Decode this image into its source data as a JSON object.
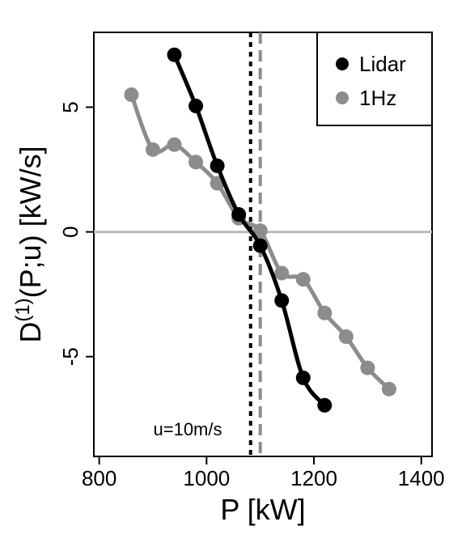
{
  "chart_data": {
    "type": "line",
    "xlabel": "P [kW]",
    "ylabel_parts": {
      "main": "D",
      "superscript": "(1)",
      "rest": "(P;u) [kW/s]"
    },
    "xlim": [
      790,
      1420
    ],
    "ylim": [
      -9,
      8
    ],
    "x_ticks": [
      800,
      1000,
      1200,
      1400
    ],
    "x_tick_labels": [
      "800",
      "1000",
      "1200",
      "1400"
    ],
    "y_ticks": [
      -5,
      0,
      5
    ],
    "y_tick_labels": [
      "-5",
      "0",
      "5"
    ],
    "grid": false,
    "legend_position": "top-right",
    "annotation": "u=10m/s",
    "series": [
      {
        "name": "Lidar",
        "color": "#000000",
        "x": [
          940,
          980,
          1020,
          1060,
          1100,
          1140,
          1180,
          1220
        ],
        "y": [
          7.1,
          5.05,
          2.65,
          0.7,
          -0.55,
          -2.75,
          -5.85,
          -6.95
        ]
      },
      {
        "name": "1Hz",
        "color": "#8c8c8c",
        "x": [
          860,
          900,
          940,
          980,
          1020,
          1060,
          1100,
          1140,
          1180,
          1220,
          1260,
          1300,
          1340
        ],
        "y": [
          5.5,
          3.3,
          3.5,
          2.8,
          1.95,
          0.55,
          0.05,
          -1.65,
          -1.9,
          -3.25,
          -4.2,
          -5.45,
          -6.3
        ]
      }
    ],
    "hlines": [
      {
        "y": 0,
        "color": "#bbbbbb",
        "style": "solid"
      }
    ],
    "vlines": [
      {
        "x": 1082,
        "color": "#000000",
        "style": "dotted"
      },
      {
        "x": 1100,
        "color": "#8c8c8c",
        "style": "dashed"
      }
    ]
  }
}
